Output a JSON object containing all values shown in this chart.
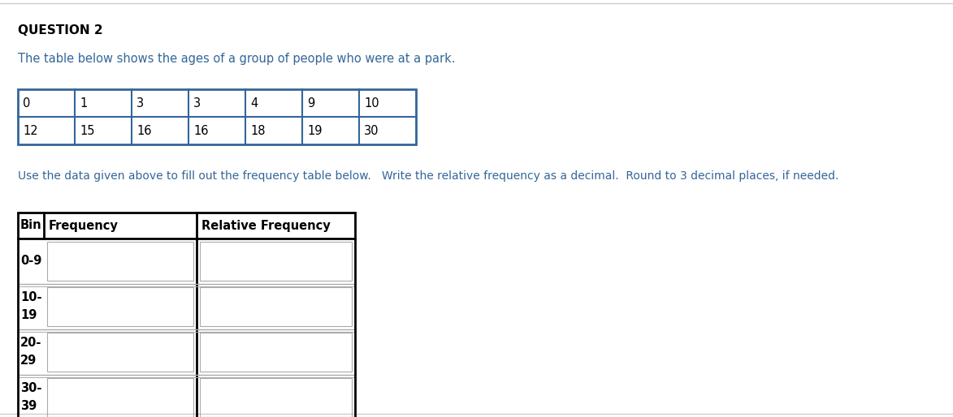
{
  "title": "QUESTION 2",
  "description": "The table below shows the ages of a group of people who were at a park.",
  "data_row1": [
    "0",
    "1",
    "3",
    "3",
    "4",
    "9",
    "10"
  ],
  "data_row2": [
    "12",
    "15",
    "16",
    "16",
    "18",
    "19",
    "30"
  ],
  "instruction": "Use the data given above to fill out the frequency table below.   Write the relative frequency as a decimal.  Round to 3 decimal places, if needed.",
  "freq_table_bins": [
    "0-9",
    "10-\n19",
    "20-\n29",
    "30-\n39"
  ],
  "background_color": "#ffffff",
  "title_color": "#000000",
  "desc_color": "#336699",
  "data_table_border_color": "#336699",
  "freq_outer_border_color": "#000000",
  "freq_inner_border_color": "#aaaaaa",
  "title_fontsize": 11,
  "desc_fontsize": 10.5,
  "data_fontsize": 10.5,
  "freq_header_fontsize": 10.5,
  "freq_bin_fontsize": 10.5,
  "instr_fontsize": 10
}
